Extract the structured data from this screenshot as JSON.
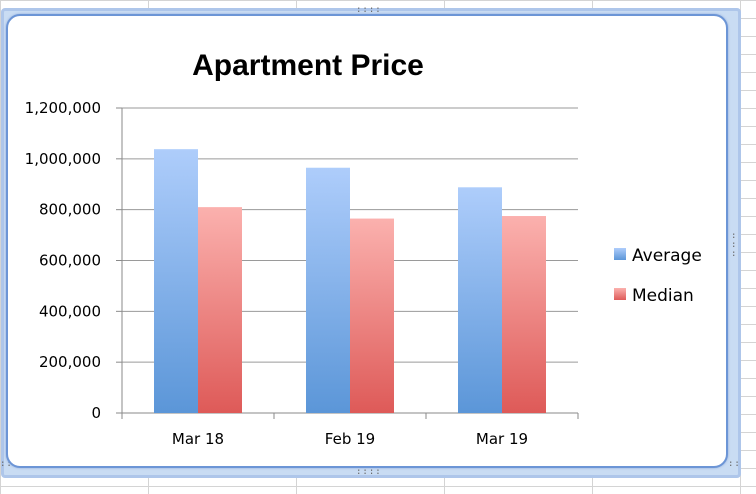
{
  "chart_data": {
    "type": "bar",
    "title": "Apartment Price",
    "xlabel": "",
    "ylabel": "",
    "categories": [
      "Mar 18",
      "Feb 19",
      "Mar 19"
    ],
    "series": [
      {
        "name": "Average",
        "values": [
          1038000,
          965000,
          888000
        ],
        "color": "#6fa2e3"
      },
      {
        "name": "Median",
        "values": [
          810000,
          765000,
          775000
        ],
        "color": "#e96a6a"
      }
    ],
    "ylim": [
      0,
      1200000
    ],
    "yticks": [
      "0",
      "200,000",
      "400,000",
      "600,000",
      "800,000",
      "1,000,000",
      "1,200,000"
    ],
    "grid": true,
    "legend_position": "right"
  }
}
